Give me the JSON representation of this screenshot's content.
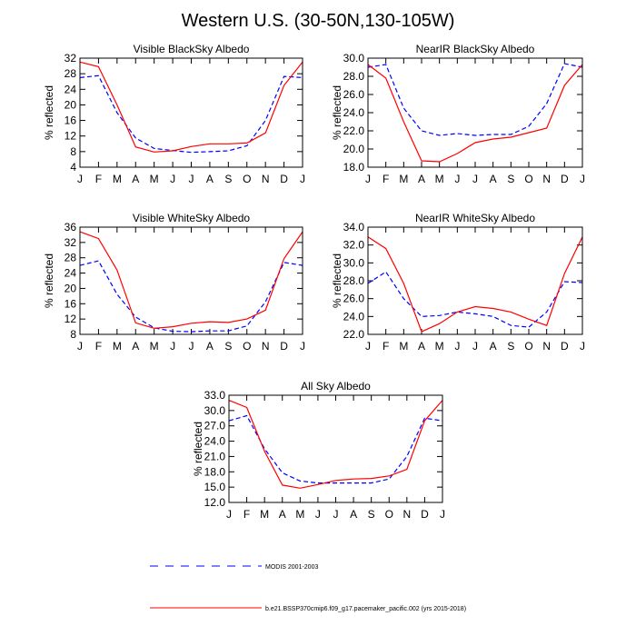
{
  "title": "Western U.S. (30-50N,130-105W)",
  "legend": [
    {
      "label": "MODIS 2001-2003",
      "color": "#0000ff",
      "style": "dashed"
    },
    {
      "label": "b.e21.BSSP370cmip6.f09_g17.pacemaker_pacific.002 (yrs 2015-2018)",
      "color": "#ff0000",
      "style": "solid"
    }
  ],
  "chart_data": [
    {
      "type": "line",
      "title": "Visible BlackSky Albedo",
      "ylabel": "% reflected",
      "xlabel": "",
      "categories": [
        "J",
        "F",
        "M",
        "A",
        "M",
        "J",
        "J",
        "A",
        "S",
        "O",
        "N",
        "D",
        "J"
      ],
      "ylim": [
        4,
        32
      ],
      "yticks": [
        "4",
        "8",
        "12",
        "16",
        "20",
        "24",
        "28",
        "32"
      ],
      "series": [
        {
          "name": "MODIS 2001-2003",
          "color": "#0000ff",
          "style": "dashed",
          "values": [
            27.0,
            27.5,
            18.0,
            11.5,
            8.8,
            8.3,
            7.8,
            8.0,
            8.2,
            9.5,
            16.0,
            27.3,
            27.0
          ]
        },
        {
          "name": "b.e21.BSSP370cmip6.f09_g17.pacemaker_pacific.002 (yrs 2015-2018)",
          "color": "#ff0000",
          "style": "solid",
          "values": [
            31.0,
            29.8,
            20.0,
            9.2,
            7.9,
            8.2,
            9.3,
            10.0,
            10.0,
            10.2,
            12.8,
            25.0,
            31.0
          ]
        }
      ]
    },
    {
      "type": "line",
      "title": "NearIR BlackSky Albedo",
      "ylabel": "% reflected",
      "xlabel": "",
      "categories": [
        "J",
        "F",
        "M",
        "A",
        "M",
        "J",
        "J",
        "A",
        "S",
        "O",
        "N",
        "D",
        "J"
      ],
      "ylim": [
        18,
        30
      ],
      "yticks": [
        "18.0",
        "20.0",
        "22.0",
        "24.0",
        "26.0",
        "28.0",
        "30.0"
      ],
      "series": [
        {
          "name": "MODIS 2001-2003",
          "color": "#0000ff",
          "style": "dashed",
          "values": [
            29.0,
            29.3,
            24.5,
            22.0,
            21.5,
            21.7,
            21.5,
            21.6,
            21.6,
            22.5,
            25.0,
            29.4,
            29.0
          ]
        },
        {
          "name": "b.e21.BSSP370cmip6.f09_g17.pacemaker_pacific.002 (yrs 2015-2018)",
          "color": "#ff0000",
          "style": "solid",
          "values": [
            29.3,
            27.8,
            23.0,
            18.7,
            18.6,
            19.5,
            20.7,
            21.1,
            21.3,
            21.8,
            22.3,
            27.0,
            29.3
          ]
        }
      ]
    },
    {
      "type": "line",
      "title": "Visible WhiteSky Albedo",
      "ylabel": "% reflected",
      "xlabel": "",
      "categories": [
        "J",
        "F",
        "M",
        "A",
        "M",
        "J",
        "J",
        "A",
        "S",
        "O",
        "N",
        "D",
        "J"
      ],
      "ylim": [
        8,
        36
      ],
      "yticks": [
        "8",
        "12",
        "16",
        "20",
        "24",
        "28",
        "32",
        "36"
      ],
      "series": [
        {
          "name": "MODIS 2001-2003",
          "color": "#0000ff",
          "style": "dashed",
          "values": [
            26.0,
            27.2,
            18.5,
            12.5,
            9.7,
            8.8,
            8.7,
            8.9,
            8.9,
            10.2,
            16.5,
            26.8,
            26.0
          ]
        },
        {
          "name": "b.e21.BSSP370cmip6.f09_g17.pacemaker_pacific.002 (yrs 2015-2018)",
          "color": "#ff0000",
          "style": "solid",
          "values": [
            34.8,
            33.0,
            24.8,
            11.0,
            9.6,
            10.0,
            10.9,
            11.3,
            11.1,
            12.0,
            14.3,
            27.8,
            34.8
          ]
        }
      ]
    },
    {
      "type": "line",
      "title": "NearIR WhiteSky Albedo",
      "ylabel": "% reflected",
      "xlabel": "",
      "categories": [
        "J",
        "F",
        "M",
        "A",
        "M",
        "J",
        "J",
        "A",
        "S",
        "O",
        "N",
        "D",
        "J"
      ],
      "ylim": [
        22,
        34
      ],
      "yticks": [
        "22.0",
        "24.0",
        "26.0",
        "28.0",
        "30.0",
        "32.0",
        "34.0"
      ],
      "series": [
        {
          "name": "MODIS 2001-2003",
          "color": "#0000ff",
          "style": "dashed",
          "values": [
            27.7,
            29.0,
            26.0,
            24.0,
            24.1,
            24.5,
            24.3,
            24.0,
            23.0,
            22.8,
            24.5,
            27.9,
            27.8
          ]
        },
        {
          "name": "b.e21.BSSP370cmip6.f09_g17.pacemaker_pacific.002 (yrs 2015-2018)",
          "color": "#ff0000",
          "style": "solid",
          "values": [
            32.9,
            31.6,
            27.7,
            22.3,
            23.2,
            24.5,
            25.1,
            24.9,
            24.5,
            23.7,
            23.0,
            28.8,
            32.9
          ]
        }
      ]
    },
    {
      "type": "line",
      "title": "All Sky Albedo",
      "ylabel": "% reflected",
      "xlabel": "",
      "categories": [
        "J",
        "F",
        "M",
        "A",
        "M",
        "J",
        "J",
        "A",
        "S",
        "O",
        "N",
        "D",
        "J"
      ],
      "ylim": [
        12,
        33
      ],
      "yticks": [
        "12.0",
        "15.0",
        "18.0",
        "21.0",
        "24.0",
        "27.0",
        "30.0",
        "33.0"
      ],
      "series": [
        {
          "name": "MODIS 2001-2003",
          "color": "#0000ff",
          "style": "dashed",
          "values": [
            28.0,
            29.0,
            22.5,
            17.8,
            16.2,
            15.8,
            15.8,
            15.8,
            15.8,
            16.6,
            21.0,
            28.5,
            28.0
          ]
        },
        {
          "name": "b.e21.BSSP370cmip6.f09_g17.pacemaker_pacific.002 (yrs 2015-2018)",
          "color": "#ff0000",
          "style": "solid",
          "values": [
            32.0,
            30.6,
            22.0,
            15.4,
            14.8,
            15.5,
            16.3,
            16.6,
            16.7,
            17.2,
            18.5,
            28.0,
            32.0
          ]
        }
      ]
    }
  ]
}
